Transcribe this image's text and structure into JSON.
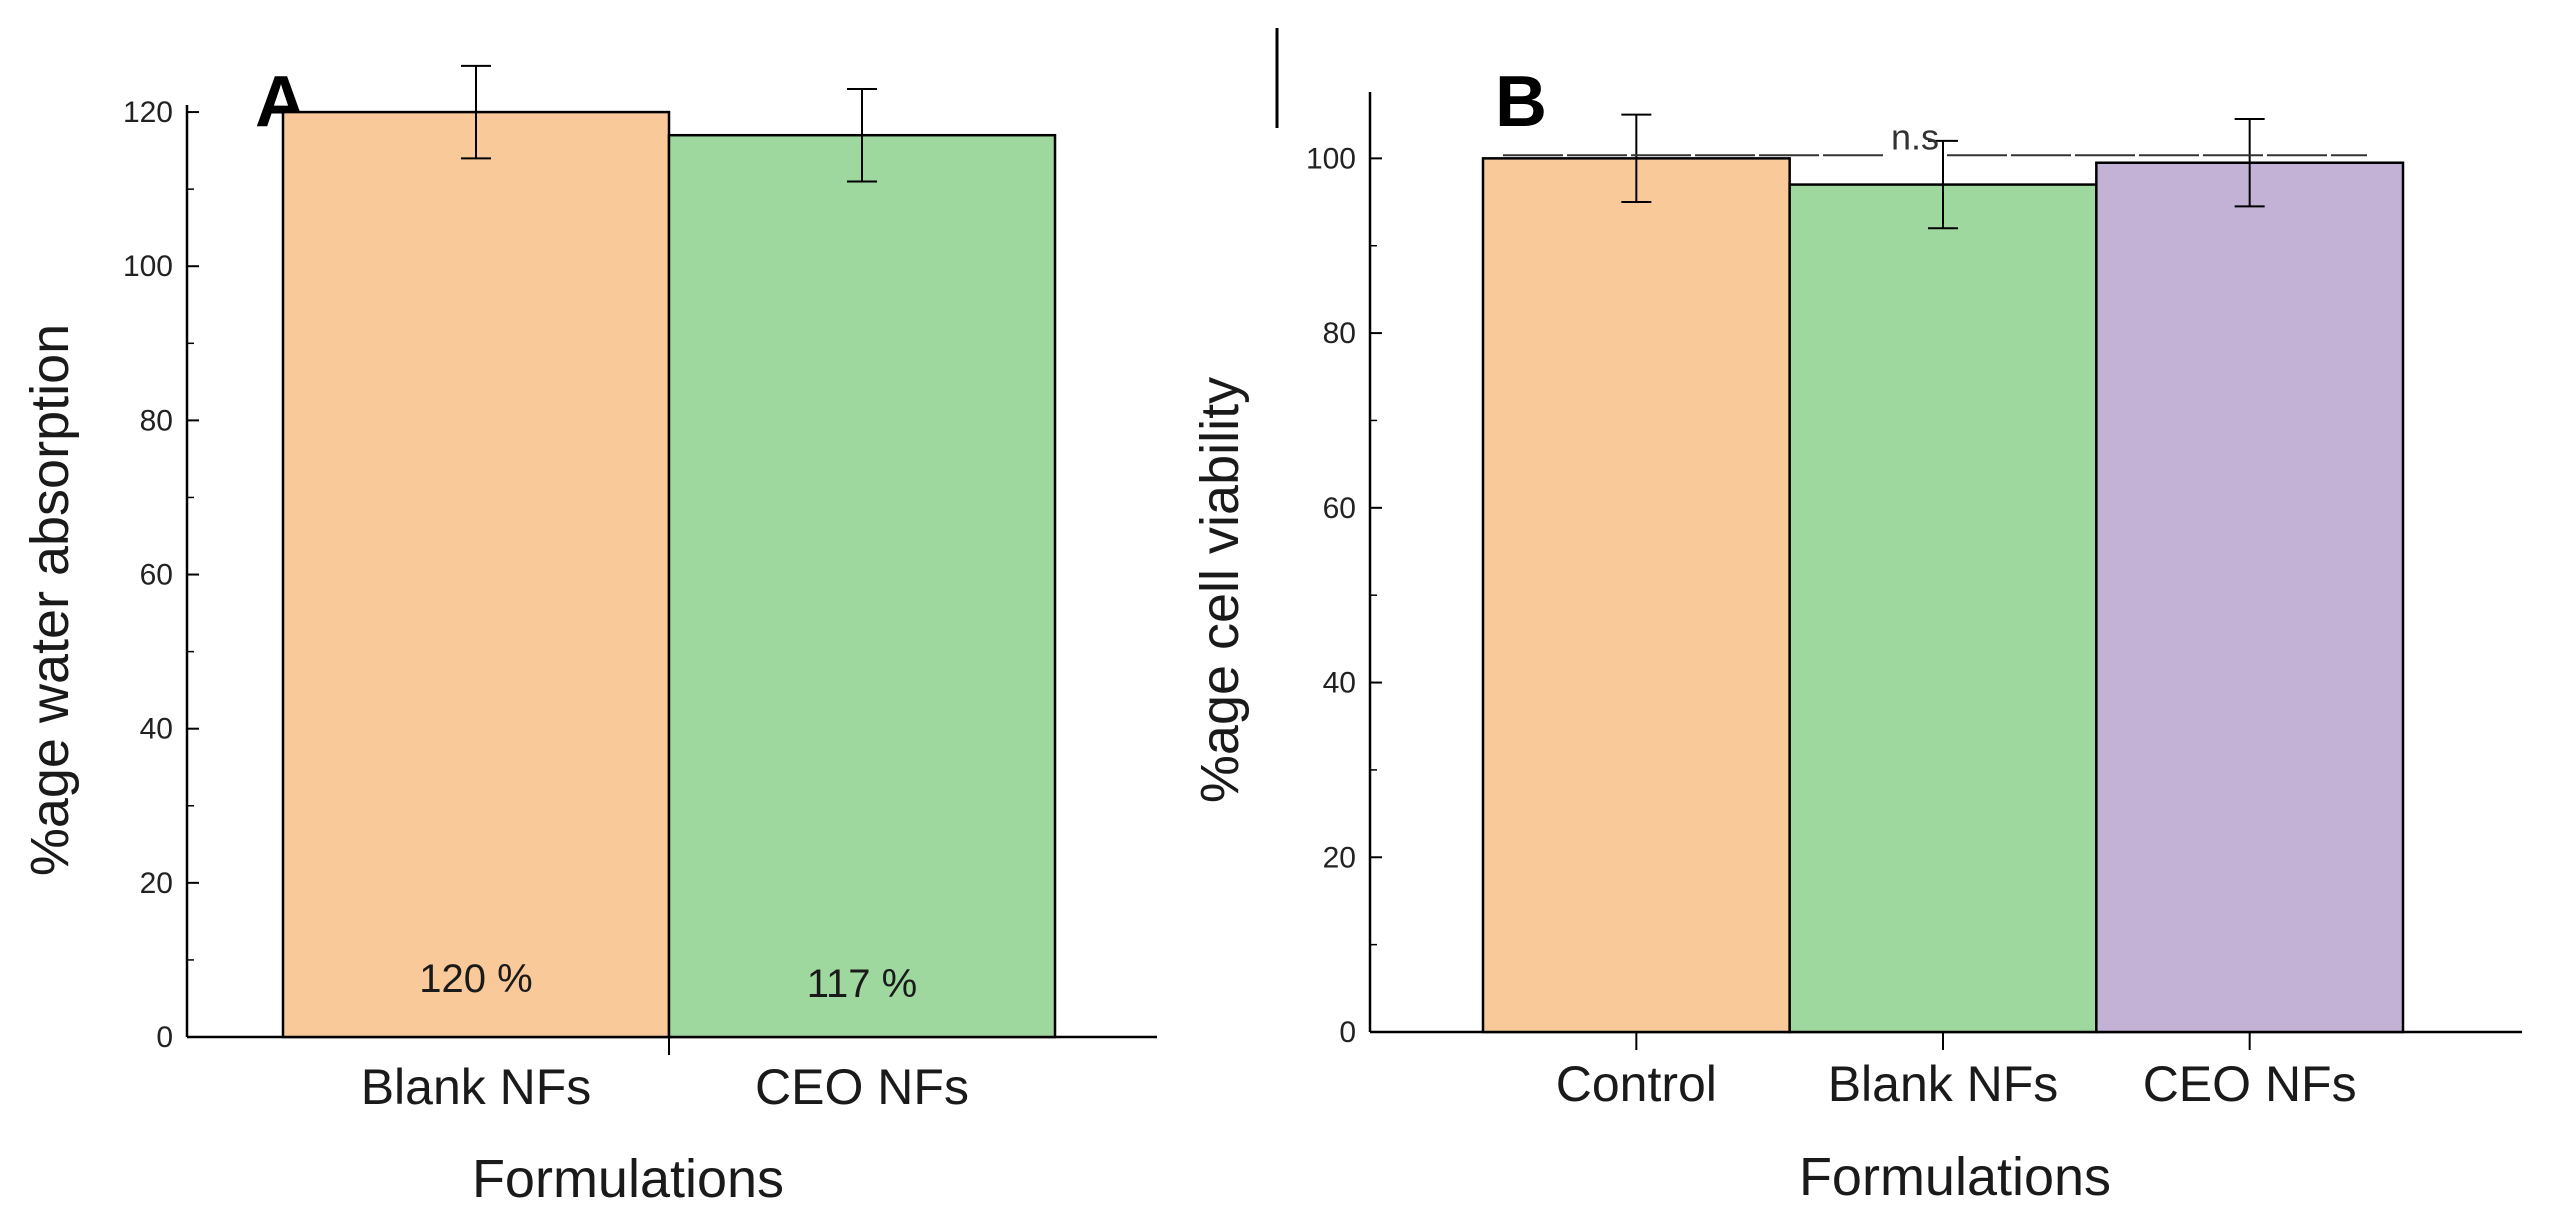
{
  "chart_data": [
    {
      "panel": "A",
      "type": "bar",
      "categories": [
        "Blank NFs",
        "CEO NFs"
      ],
      "values": [
        120,
        117
      ],
      "errors": [
        6,
        6
      ],
      "bar_labels": [
        "120 %",
        "117 %"
      ],
      "colors": [
        "#f9c99a",
        "#9fd89f"
      ],
      "xlabel": "Formulations",
      "ylabel": "%age water absorption",
      "ylim": [
        0,
        130
      ],
      "yticks": [
        0,
        20,
        40,
        60,
        80,
        100,
        120
      ],
      "grid": false
    },
    {
      "panel": "B",
      "type": "bar",
      "categories": [
        "Control",
        "Blank NFs",
        "CEO NFs"
      ],
      "values": [
        100,
        97,
        99.5
      ],
      "errors": [
        5,
        5,
        5
      ],
      "colors": [
        "#f9c99a",
        "#9fd89f",
        "#c3b1d6"
      ],
      "xlabel": "Formulations",
      "ylabel": "%age cell viability",
      "ylim": [
        0,
        110
      ],
      "yticks": [
        0,
        20,
        40,
        60,
        80,
        100
      ],
      "significance_label": "n.s",
      "significance_level": 101.5,
      "grid": false
    }
  ]
}
